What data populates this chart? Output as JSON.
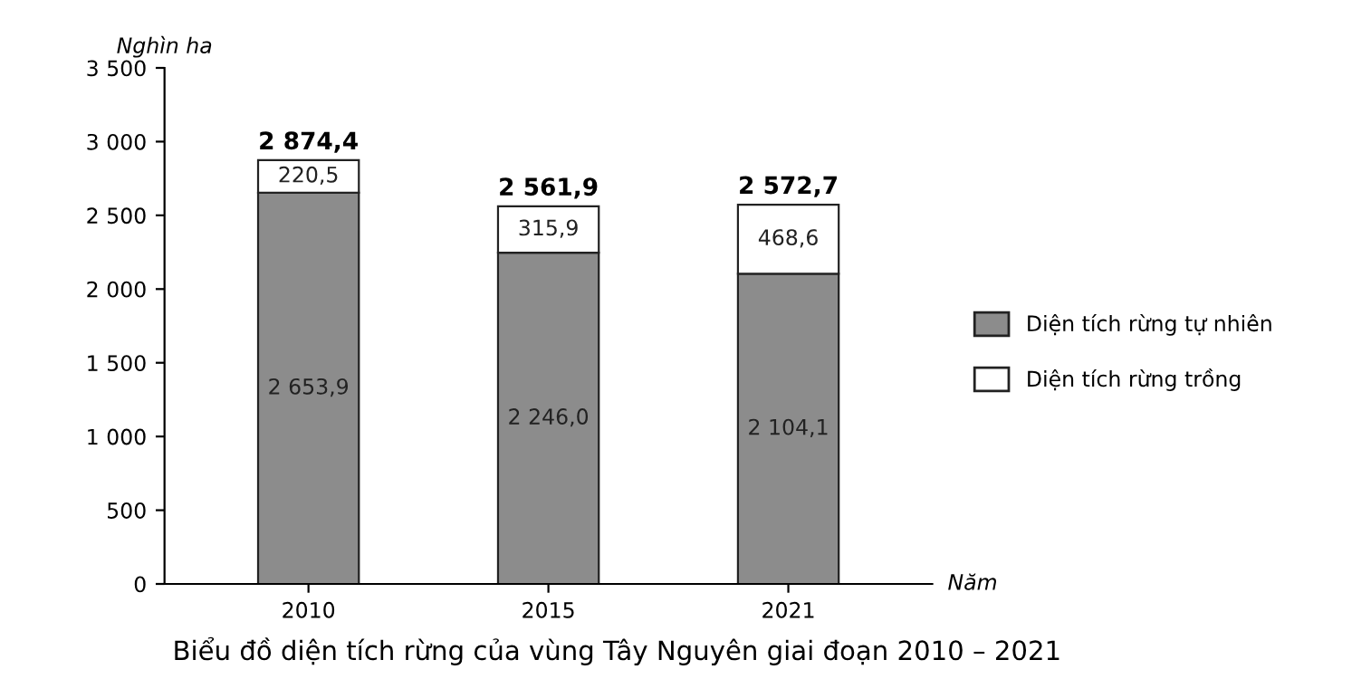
{
  "chart_data": {
    "type": "bar",
    "stacked": true,
    "title": "Biểu đồ diện tích rừng của vùng Tây Nguyên giai đoạn 2010 – 2021",
    "xlabel": "Năm",
    "ylabel": "Nghìn ha",
    "categories": [
      "2010",
      "2015",
      "2021"
    ],
    "series": [
      {
        "name": "Diện tích rừng tự nhiên",
        "color": "#8c8c8c",
        "values": [
          2653.9,
          2246.0,
          2104.1
        ],
        "value_labels": [
          "2 653,9",
          "2 246,0",
          "2 104,1"
        ]
      },
      {
        "name": "Diện tích rừng trồng",
        "color": "#ffffff",
        "values": [
          220.5,
          315.9,
          468.6
        ],
        "value_labels": [
          "220,5",
          "315,9",
          "468,6"
        ]
      }
    ],
    "totals": [
      "2 874,4",
      "2 561,9",
      "2 572,7"
    ],
    "ylim": [
      0,
      3500
    ],
    "yticks": [
      0,
      500,
      {
        "value": 1000,
        "label": "1 000"
      },
      {
        "value": 1500,
        "label": "1 500"
      },
      {
        "value": 2000,
        "label": "2 000"
      },
      {
        "value": 2500,
        "label": "2 500"
      },
      {
        "value": 3000,
        "label": "3 000"
      },
      {
        "value": 3500,
        "label": "3 500"
      }
    ],
    "grid": false,
    "legend": "right"
  }
}
